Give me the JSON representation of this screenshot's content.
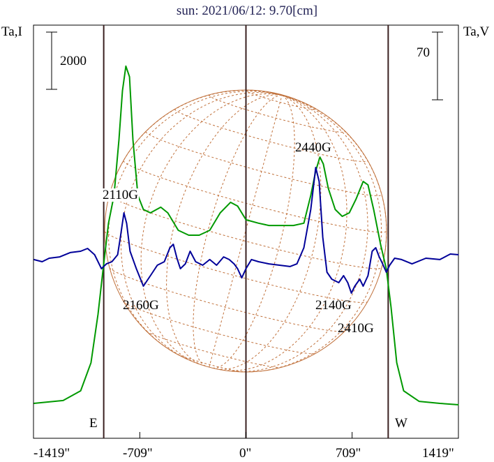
{
  "chart_data": {
    "type": "line",
    "title": "sun: 2021/06/12: 9.70[cm]",
    "ylabel_left": "Ta,I",
    "ylabel_right": "Ta,V",
    "scale_bar_left": "2000",
    "scale_bar_right": "70",
    "xlim": [
      -1419,
      1419
    ],
    "x_ticks": [
      {
        "value": -1419,
        "label": "-1419\""
      },
      {
        "value": -709,
        "label": "-709\""
      },
      {
        "value": 0,
        "label": "0\""
      },
      {
        "value": 709,
        "label": "709\""
      },
      {
        "value": 1419,
        "label": "1419\""
      }
    ],
    "limbs": [
      {
        "value": -950,
        "label": "E"
      },
      {
        "value": 0,
        "label": ""
      },
      {
        "value": 950,
        "label": "W"
      }
    ],
    "series": [
      {
        "name": "Ta,I",
        "color": "#009900",
        "x": [
          -1417,
          -1221,
          -1104,
          -1035,
          -988,
          -951,
          -918,
          -881,
          -848,
          -825,
          -802,
          -778,
          -755,
          -722,
          -685,
          -638,
          -569,
          -522,
          -452,
          -382,
          -312,
          -242,
          -172,
          -103,
          -56,
          0,
          84,
          154,
          224,
          317,
          387,
          433,
          466,
          494,
          517,
          550,
          596,
          643,
          690,
          736,
          783,
          815,
          853,
          899,
          937,
          969,
          1007,
          1053,
          1156,
          1295,
          1421
        ],
        "y": [
          0,
          100,
          440,
          1420,
          3120,
          4830,
          6300,
          7270,
          9220,
          10930,
          11790,
          11420,
          9220,
          7270,
          6780,
          6660,
          6860,
          6660,
          6050,
          5880,
          5880,
          6050,
          6660,
          7030,
          6900,
          6420,
          6300,
          6220,
          6220,
          6220,
          6300,
          7270,
          8130,
          8610,
          8370,
          7520,
          6780,
          6540,
          6660,
          7150,
          7760,
          7640,
          6780,
          5560,
          4710,
          3370,
          1420,
          440,
          70,
          0,
          -50
        ]
      },
      {
        "name": "Ta,V",
        "color": "#000099",
        "x": [
          -1417,
          -1361,
          -1314,
          -1244,
          -1174,
          -1104,
          -1058,
          -1011,
          -965,
          -932,
          -895,
          -857,
          -839,
          -815,
          -797,
          -774,
          -732,
          -685,
          -638,
          -592,
          -545,
          -508,
          -485,
          -461,
          -438,
          -405,
          -373,
          -336,
          -289,
          -242,
          -196,
          -149,
          -112,
          -79,
          -56,
          -28,
          0,
          37,
          84,
          154,
          224,
          294,
          340,
          387,
          433,
          466,
          489,
          513,
          541,
          573,
          620,
          652,
          680,
          704,
          727,
          760,
          783,
          815,
          843,
          867,
          890,
          913,
          937,
          960,
          993,
          1039,
          1109,
          1202,
          1295,
          1365,
          1421
        ],
        "y": [
          -1.4,
          -3.6,
          0,
          1.4,
          5.8,
          7.2,
          10.1,
          3.6,
          -10.8,
          -5.8,
          -3.6,
          3.6,
          21.6,
          46.8,
          36,
          7.2,
          -10.8,
          -28.8,
          -18,
          -7.2,
          -3.6,
          10.8,
          14.4,
          0,
          -10.8,
          -5.8,
          7.2,
          -3.6,
          -7.2,
          -1.4,
          -7.2,
          1.4,
          -1.4,
          -5.8,
          -10.8,
          -20.2,
          -10.8,
          -1.4,
          -3.6,
          -5.8,
          -7.2,
          -8.6,
          -5.8,
          10.8,
          50.4,
          93.6,
          79.2,
          21.6,
          -14.4,
          -21.6,
          -25.2,
          -18,
          -25.2,
          -36,
          -28.8,
          -21.6,
          -28.8,
          -18,
          7.2,
          10.8,
          1.4,
          -5.8,
          -14.4,
          -7.2,
          0,
          -1.4,
          -5.8,
          0,
          -1.4,
          4.3,
          3.6
        ]
      }
    ],
    "annotations": [
      "2110G",
      "2160G",
      "2440G",
      "2140G",
      "2410G"
    ]
  }
}
